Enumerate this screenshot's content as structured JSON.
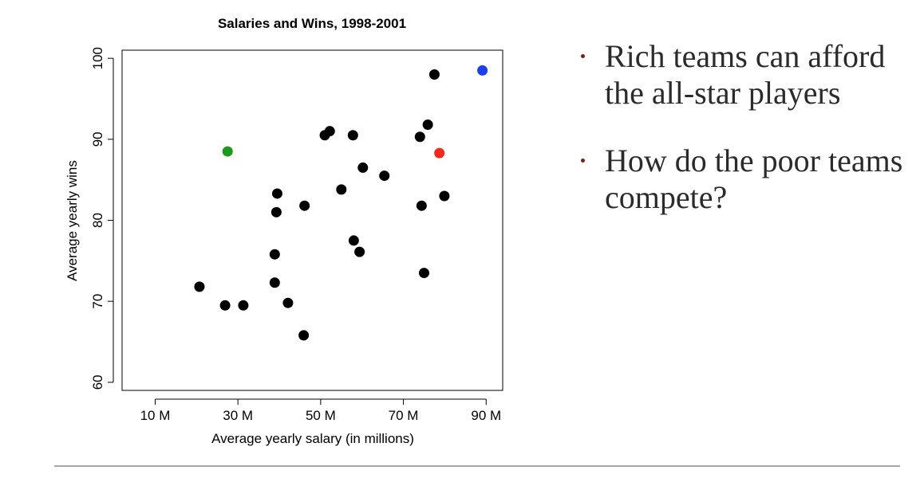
{
  "chart_data": {
    "type": "scatter",
    "title": "Salaries and Wins, 1998-2001",
    "xlabel": "Average yearly salary (in millions)",
    "ylabel": "Average yearly wins",
    "xlim": [
      2,
      94
    ],
    "ylim": [
      59,
      101
    ],
    "xticks": [
      10,
      30,
      50,
      70,
      90
    ],
    "xtick_labels": [
      "10 M",
      "30 M",
      "50 M",
      "70 M",
      "90 M"
    ],
    "yticks": [
      60,
      70,
      80,
      90,
      100
    ],
    "ytick_labels": [
      "60",
      "70",
      "80",
      "90",
      "100"
    ],
    "grid": false,
    "default_color": "#000000",
    "points": [
      {
        "x": 20.7,
        "y": 71.8
      },
      {
        "x": 26.9,
        "y": 69.5
      },
      {
        "x": 31.3,
        "y": 69.5
      },
      {
        "x": 27.5,
        "y": 88.5,
        "color": "#1a9a1a"
      },
      {
        "x": 38.9,
        "y": 75.8
      },
      {
        "x": 38.9,
        "y": 72.3
      },
      {
        "x": 39.3,
        "y": 81.0
      },
      {
        "x": 39.5,
        "y": 83.3
      },
      {
        "x": 42.1,
        "y": 69.8
      },
      {
        "x": 45.9,
        "y": 65.8
      },
      {
        "x": 46.1,
        "y": 81.8
      },
      {
        "x": 51.0,
        "y": 90.5
      },
      {
        "x": 52.2,
        "y": 91.0
      },
      {
        "x": 55.0,
        "y": 83.8
      },
      {
        "x": 57.8,
        "y": 90.5
      },
      {
        "x": 58.0,
        "y": 77.5
      },
      {
        "x": 59.4,
        "y": 76.1
      },
      {
        "x": 60.2,
        "y": 86.5
      },
      {
        "x": 65.4,
        "y": 85.5
      },
      {
        "x": 74.0,
        "y": 90.3
      },
      {
        "x": 74.4,
        "y": 81.8
      },
      {
        "x": 75.0,
        "y": 73.5
      },
      {
        "x": 75.9,
        "y": 91.8
      },
      {
        "x": 77.5,
        "y": 98.0
      },
      {
        "x": 78.7,
        "y": 88.3,
        "color": "#f22a1a"
      },
      {
        "x": 79.9,
        "y": 83.0
      },
      {
        "x": 89.1,
        "y": 98.5,
        "color": "#1a3ef2"
      }
    ]
  },
  "bullets": [
    "Rich teams can afford the all-star players",
    "How do the poor teams compete?"
  ]
}
